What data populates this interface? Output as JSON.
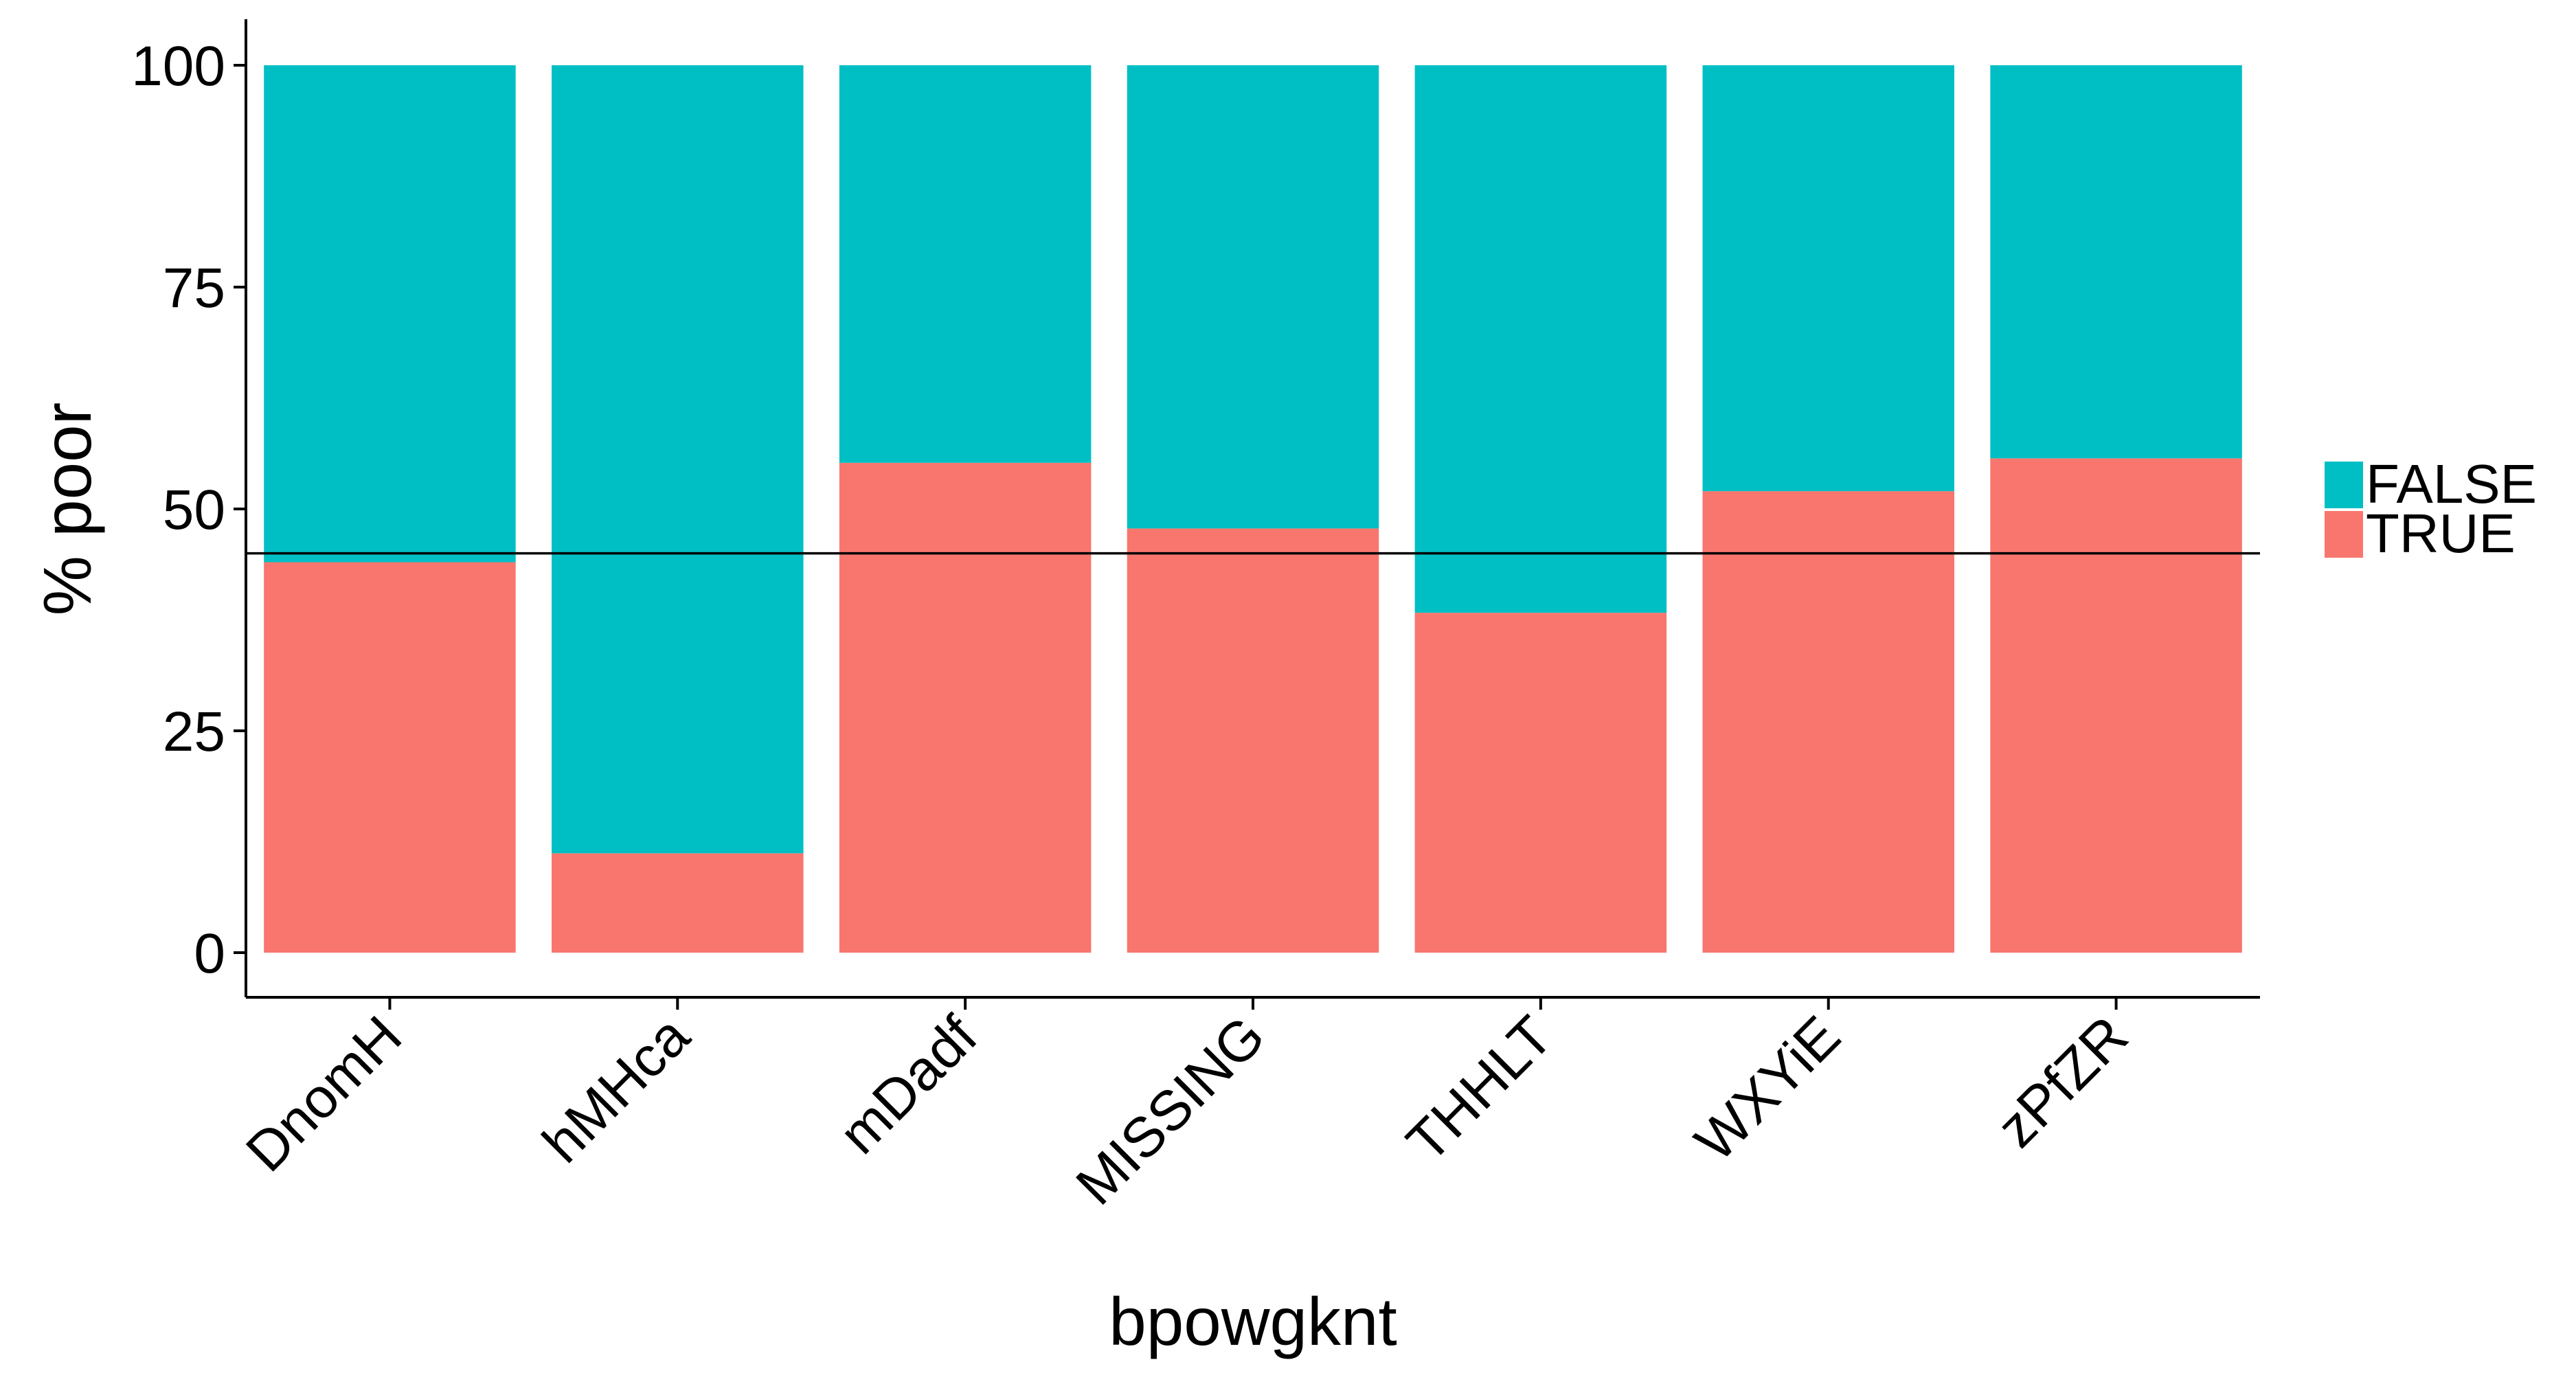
{
  "chart_data": {
    "type": "bar",
    "stacked": true,
    "percent": true,
    "title": "",
    "xlabel": "bpowgknt",
    "ylabel": "% poor",
    "ylim": [
      0,
      100
    ],
    "yticks": [
      "0",
      "25",
      "50",
      "75",
      "100"
    ],
    "categories": [
      "DnomH",
      "hMHca",
      "mDadf",
      "MISSING",
      "THHLT",
      "WXYiE",
      "zPfZR"
    ],
    "series": [
      {
        "name": "TRUE",
        "color": "#F8766D",
        "values": [
          44,
          11.2,
          55.2,
          47.8,
          38.3,
          52,
          55.7
        ]
      },
      {
        "name": "FALSE",
        "color": "#00BFC4",
        "values": [
          56,
          88.8,
          44.8,
          52.2,
          61.7,
          48,
          44.3
        ]
      }
    ],
    "reference_line": 45,
    "legend": {
      "position": "right",
      "entries": [
        {
          "label": "FALSE",
          "color": "#00BFC4"
        },
        {
          "label": "TRUE",
          "color": "#F8766D"
        }
      ]
    },
    "grid": false
  }
}
